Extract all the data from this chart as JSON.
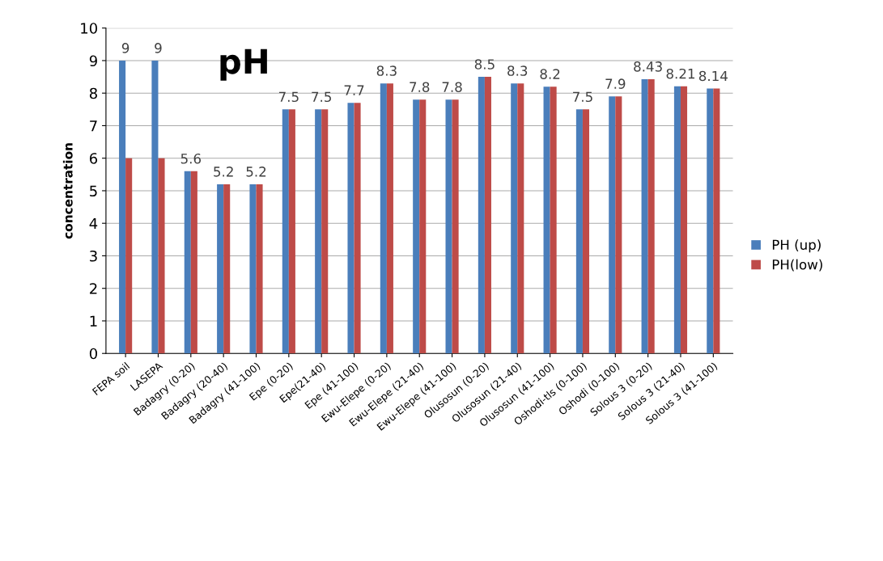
{
  "chart_data": {
    "type": "bar",
    "title": "pH",
    "ylabel": "concentration",
    "categories": [
      "FEPA soil",
      "LASEPA",
      "Badagry (0-20)",
      "Badagry (20-40)",
      "Badagry (41-100)",
      "Epe (0-20)",
      "Epe(21-40)",
      "Epe (41-100)",
      "Ewu-Elepe (0-20)",
      "Ewu-Elepe (21-40)",
      "Ewu-Elepe (41-100)",
      "Olusosun (0-20)",
      "Olusosun (21-40)",
      "Olusosun (41-100)",
      "Oshodi-tls (0-100)",
      "Oshodi (0-100)",
      "Solous 3 (0-20)",
      "Solous 3 (21-40)",
      "Solous 3 (41-100)"
    ],
    "series": [
      {
        "name": "PH (up)",
        "color": "#4a7ebb",
        "values": [
          9,
          9,
          5.6,
          5.2,
          5.2,
          7.5,
          7.5,
          7.7,
          8.3,
          7.8,
          7.8,
          8.5,
          8.3,
          8.2,
          7.5,
          7.9,
          8.43,
          8.21,
          8.14
        ],
        "value_labels": [
          "9",
          "9",
          "5.6",
          "5.2",
          "5.2",
          "7.5",
          "7.5",
          "7.7",
          "8.3",
          "7.8",
          "7.8",
          "8.5",
          "8.3",
          "8.2",
          "7.5",
          "7.9",
          "8.43",
          "8.21",
          "8.14"
        ]
      },
      {
        "name": "PH(low)",
        "color": "#be4b48",
        "values": [
          6,
          6,
          5.6,
          5.2,
          5.2,
          7.5,
          7.5,
          7.7,
          8.3,
          7.8,
          7.8,
          8.5,
          8.3,
          8.2,
          7.5,
          7.9,
          8.43,
          8.21,
          8.14
        ]
      }
    ],
    "ylim": [
      0,
      10
    ],
    "yticks": [
      0,
      1,
      2,
      3,
      4,
      5,
      6,
      7,
      8,
      9,
      10
    ],
    "grid": "y",
    "legend": "right"
  }
}
